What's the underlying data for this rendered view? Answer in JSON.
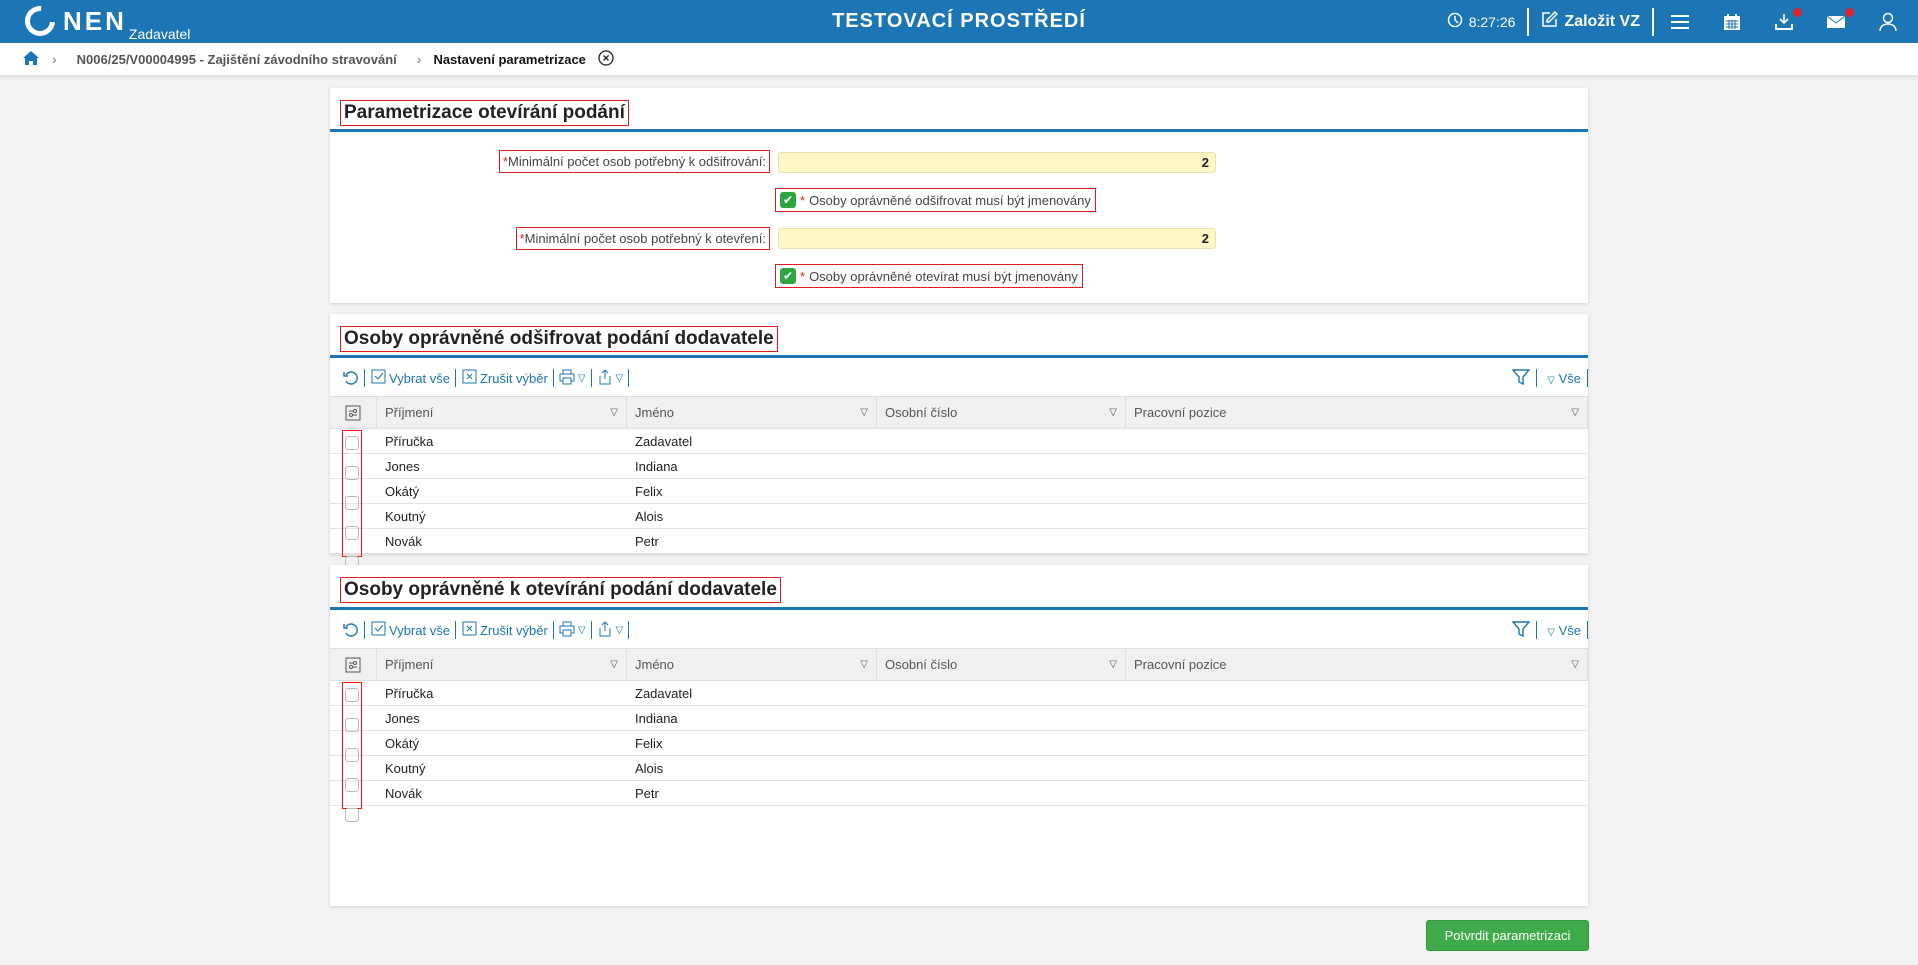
{
  "header": {
    "logo": "NEN",
    "logo_sub": "Zadavatel",
    "environment": "TESTOVACÍ PROSTŘEDÍ",
    "time": "8:27:26",
    "create_label": "Založit VZ",
    "accent": "#1c75b4"
  },
  "breadcrumb": {
    "items": [
      "N006/25/V00004995 - Zajištění závodního stravování",
      "Nastavení parametrizace"
    ]
  },
  "section1": {
    "title": "Parametrizace otevírání podání",
    "field1": {
      "label": "Minimální počet osob potřebný k odšifrování:",
      "value": "2"
    },
    "check1": {
      "label": "Osoby oprávněné odšifrovat musí být jmenovány",
      "checked": true
    },
    "field2": {
      "label": "Minimální počet osob potřebný k otevření:",
      "value": "2"
    },
    "check2": {
      "label": "Osoby oprávněné otevírat musí být jmenovány",
      "checked": true
    },
    "required_mark": "*"
  },
  "toolbar": {
    "select_all": "Vybrat vše",
    "deselect": "Zrušit výběr",
    "all": "Vše"
  },
  "columns": [
    "Příjmení",
    "Jméno",
    "Osobní číslo",
    "Pracovní pozice"
  ],
  "section2": {
    "title": "Osoby oprávněné odšifrovat podání dodavatele",
    "rows": [
      [
        "Příručka",
        "Zadavatel",
        "",
        ""
      ],
      [
        "Jones",
        "Indiana",
        "",
        ""
      ],
      [
        "Okátý",
        "Felix",
        "",
        ""
      ],
      [
        "Koutný",
        "Alois",
        "",
        ""
      ],
      [
        "Novák",
        "Petr",
        "",
        ""
      ]
    ]
  },
  "section3": {
    "title": "Osoby oprávněné k otevírání podání dodavatele",
    "rows": [
      [
        "Příručka",
        "Zadavatel",
        "",
        ""
      ],
      [
        "Jones",
        "Indiana",
        "",
        ""
      ],
      [
        "Okátý",
        "Felix",
        "",
        ""
      ],
      [
        "Koutný",
        "Alois",
        "",
        ""
      ],
      [
        "Novák",
        "Petr",
        "",
        ""
      ]
    ]
  },
  "confirm_label": "Potvrdit parametrizaci"
}
